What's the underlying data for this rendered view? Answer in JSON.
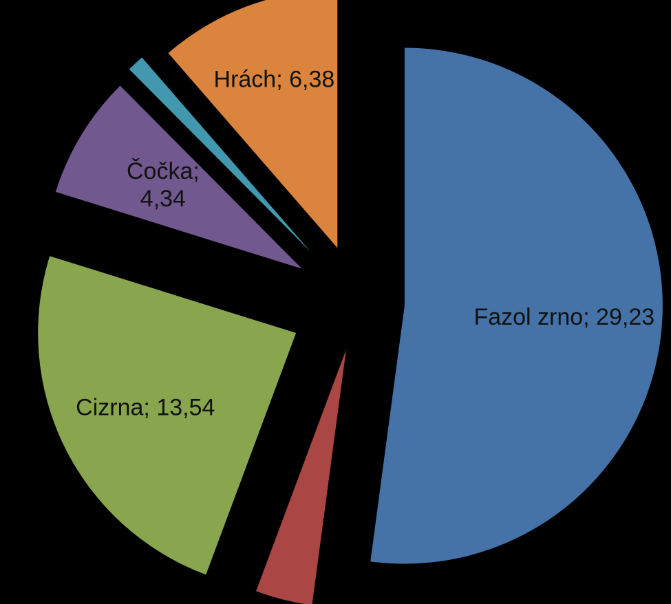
{
  "chart_data": {
    "type": "pie",
    "title": "",
    "legend": "none",
    "exploded": true,
    "start_direction": "top",
    "slices": [
      {
        "name": "Fazol zrno",
        "value": 29.23,
        "label_lines": [
          "Fazol zrno; 29,23"
        ],
        "color": "#4572A7"
      },
      {
        "name": "",
        "value": 2.0,
        "label_lines": [],
        "color": "#AA4643"
      },
      {
        "name": "Cizrna",
        "value": 13.54,
        "label_lines": [
          "Cizrna; 13,54"
        ],
        "color": "#89A54E"
      },
      {
        "name": "Čočka",
        "value": 4.34,
        "label_lines": [
          "Čočka;",
          "4,34"
        ],
        "color": "#71588F"
      },
      {
        "name": "",
        "value": 0.6,
        "label_lines": [],
        "color": "#4198AF"
      },
      {
        "name": "Hrách",
        "value": 6.38,
        "label_lines": [
          "Hrách; 6,38"
        ],
        "color": "#DB843D"
      }
    ]
  }
}
